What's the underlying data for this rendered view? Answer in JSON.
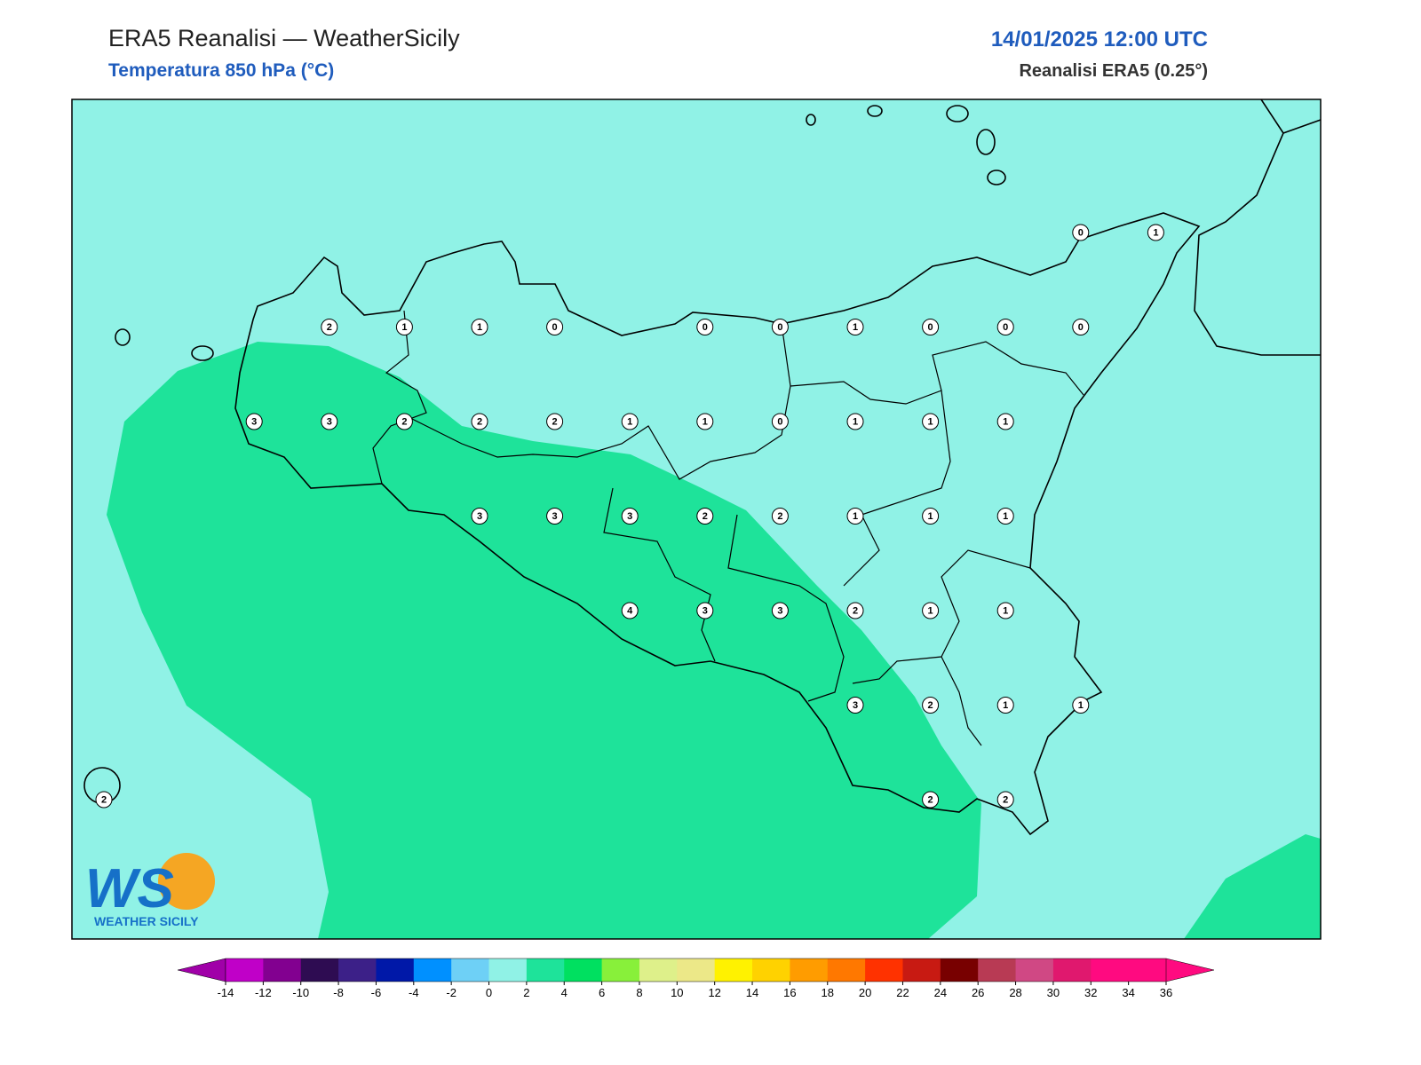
{
  "header": {
    "title": "ERA5 Reanalisi — WeatherSicily",
    "subtitle": "Temperatura 850 hPa (°C)",
    "datetime": "14/01/2025 12:00 UTC",
    "source": "Reanalisi ERA5 (0.25°)"
  },
  "map": {
    "background_color": "#90f2e6",
    "contour_color": "#1ee39a",
    "station_grid": [
      [
        null,
        null,
        null,
        null,
        null,
        null,
        null,
        null,
        null,
        null,
        null,
        null,
        null,
        0,
        1
      ],
      [
        null,
        null,
        null,
        2,
        1,
        1,
        0,
        null,
        0,
        0,
        1,
        0,
        0,
        0,
        null
      ],
      [
        null,
        null,
        3,
        3,
        2,
        2,
        2,
        1,
        1,
        0,
        1,
        1,
        1,
        null,
        null
      ],
      [
        null,
        null,
        null,
        null,
        null,
        3,
        3,
        3,
        2,
        2,
        1,
        1,
        1,
        null,
        null
      ],
      [
        null,
        null,
        null,
        null,
        null,
        null,
        null,
        4,
        3,
        3,
        2,
        1,
        1,
        null,
        null
      ],
      [
        null,
        null,
        null,
        null,
        null,
        null,
        null,
        null,
        null,
        null,
        3,
        2,
        1,
        1,
        null
      ],
      [
        2,
        null,
        null,
        null,
        null,
        null,
        null,
        null,
        null,
        null,
        null,
        2,
        2,
        null,
        null
      ]
    ]
  },
  "logo": {
    "mark": "WS",
    "text": "WEATHER SICILY"
  },
  "colorbar": {
    "ticks": [
      -14,
      -12,
      -10,
      -8,
      -6,
      -4,
      -2,
      0,
      2,
      4,
      6,
      8,
      10,
      12,
      14,
      16,
      18,
      20,
      22,
      24,
      26,
      28,
      30,
      32,
      34,
      36
    ],
    "colors": [
      "#c000c8",
      "#820090",
      "#2e0c52",
      "#3c2088",
      "#0018a8",
      "#0090ff",
      "#6ed0f6",
      "#90f2e6",
      "#1ee39a",
      "#00e060",
      "#88f03a",
      "#def08a",
      "#ece888",
      "#fff200",
      "#ffd200",
      "#ff9c00",
      "#ff7800",
      "#ff3200",
      "#c81a12",
      "#780000",
      "#b83a54",
      "#d04884",
      "#e0186e",
      "#ff0a80",
      "#ff0a80"
    ],
    "under_color": "#a000a8",
    "over_color": "#ff0a80"
  }
}
